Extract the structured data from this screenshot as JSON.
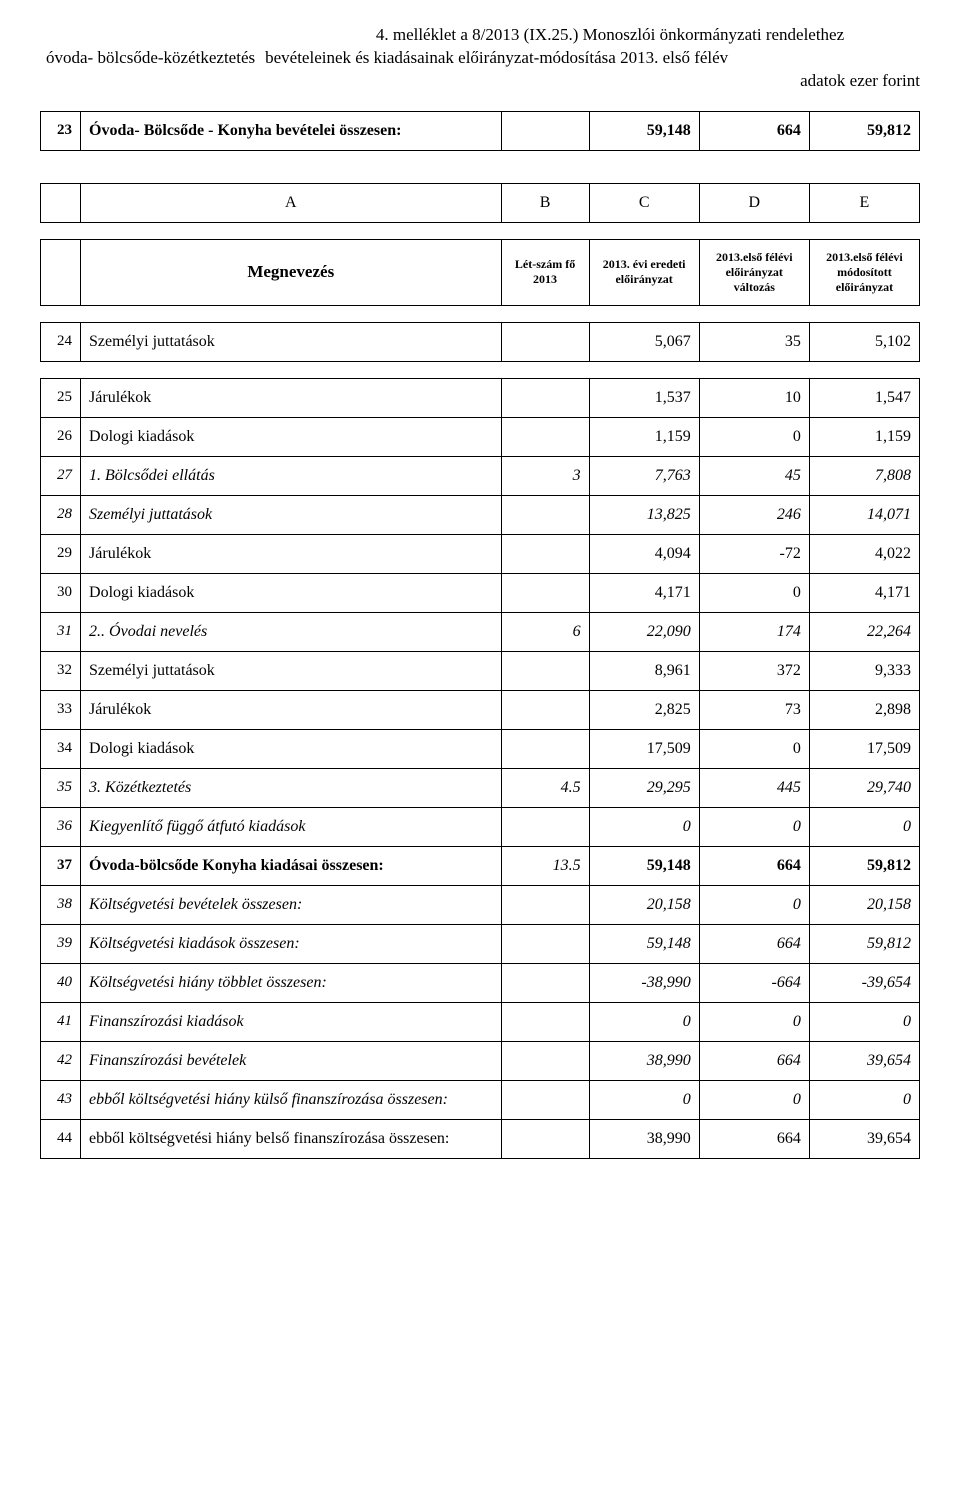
{
  "header": {
    "attachment": "4. melléklet a 8/2013 (IX.25.) Monoszlói önkormányzati rendelethez",
    "line2_left": "óvoda- bölcsőde-közétkeztetés",
    "line2_right": "bevételeinek  és kiadásainak előirányzat-módosítása 2013. első félév",
    "unitline": "adatok ezer forint"
  },
  "cols": {
    "A": "A",
    "B": "B",
    "C": "C",
    "D": "D",
    "E": "E",
    "megnevezes": "Megnevezés",
    "letszam": "Lét-szám fő 2013",
    "h1": "2013. évi eredeti előirányzat",
    "h2": "2013.első félévi előirányzat változás",
    "h3": "2013.első félévi módosított előirányzat"
  },
  "rows": [
    {
      "n": "23",
      "name": "Óvoda- Bölcsőde - Konyha bevételei összesen:",
      "ls": "",
      "v1": "59,148",
      "v2": "664",
      "v3": "59,812",
      "style": "bold"
    },
    {
      "abcde": true
    },
    {
      "meg": true
    },
    {
      "n": "24",
      "name": "Személyi juttatások",
      "ls": "",
      "v1": "5,067",
      "v2": "35",
      "v3": "5,102",
      "style": ""
    },
    {
      "n": "25",
      "name": "Járulékok",
      "ls": "",
      "v1": "1,537",
      "v2": "10",
      "v3": "1,547",
      "style": ""
    },
    {
      "n": "26",
      "name": "Dologi kiadások",
      "ls": "",
      "v1": "1,159",
      "v2": "0",
      "v3": "1,159",
      "style": ""
    },
    {
      "n": "27",
      "name": "1. Bölcsődei ellátás",
      "ls": "3",
      "v1": "7,763",
      "v2": "45",
      "v3": "7,808",
      "style": "italic"
    },
    {
      "n": "28",
      "name": "Személyi juttatások",
      "ls": "",
      "v1": "13,825",
      "v2": "246",
      "v3": "14,071",
      "style": "italic"
    },
    {
      "n": "29",
      "name": "Járulékok",
      "ls": "",
      "v1": "4,094",
      "v2": "-72",
      "v3": "4,022",
      "style": ""
    },
    {
      "n": "30",
      "name": "Dologi kiadások",
      "ls": "",
      "v1": "4,171",
      "v2": "0",
      "v3": "4,171",
      "style": ""
    },
    {
      "n": "31",
      "name": "2.. Óvodai nevelés",
      "ls": "6",
      "v1": "22,090",
      "v2": "174",
      "v3": "22,264",
      "style": "italic"
    },
    {
      "n": "32",
      "name": "Személyi juttatások",
      "ls": "",
      "v1": "8,961",
      "v2": "372",
      "v3": "9,333",
      "style": ""
    },
    {
      "n": "33",
      "name": "Járulékok",
      "ls": "",
      "v1": "2,825",
      "v2": "73",
      "v3": "2,898",
      "style": ""
    },
    {
      "n": "34",
      "name": "Dologi kiadások",
      "ls": "",
      "v1": "17,509",
      "v2": "0",
      "v3": "17,509",
      "style": ""
    },
    {
      "n": "35",
      "name": "3. Közétkeztetés",
      "ls": "4.5",
      "v1": "29,295",
      "v2": "445",
      "v3": "29,740",
      "style": "italic"
    },
    {
      "n": "36",
      "name": "Kiegyenlítő függő átfutó kiadások",
      "ls": "",
      "v1": "0",
      "v2": "0",
      "v3": "0",
      "style": "italic"
    },
    {
      "n": "37",
      "name": "Óvoda-bölcsőde Konyha kiadásai összesen:",
      "ls": "13.5",
      "v1": "59,148",
      "v2": "664",
      "v3": "59,812",
      "style": "bold",
      "lsitalic": true
    },
    {
      "n": "38",
      "name": "Költségvetési bevételek összesen:",
      "ls": "",
      "v1": "20,158",
      "v2": "0",
      "v3": "20,158",
      "style": "italic"
    },
    {
      "n": "39",
      "name": "Költségvetési kiadások összesen:",
      "ls": "",
      "v1": "59,148",
      "v2": "664",
      "v3": "59,812",
      "style": "italic"
    },
    {
      "n": "40",
      "name": "Költségvetési hiány többlet összesen:",
      "ls": "",
      "v1": "-38,990",
      "v2": "-664",
      "v3": "-39,654",
      "style": "italic"
    },
    {
      "n": "41",
      "name": "Finanszírozási kiadások",
      "ls": "",
      "v1": "0",
      "v2": "0",
      "v3": "0",
      "style": "italic"
    },
    {
      "n": "42",
      "name": "Finanszírozási bevételek",
      "ls": "",
      "v1": "38,990",
      "v2": "664",
      "v3": "39,654",
      "style": "italic"
    },
    {
      "n": "43",
      "name": "ebből költségvetési hiány külső finanszírozása összesen:",
      "ls": "",
      "v1": "0",
      "v2": "0",
      "v3": "0",
      "style": "italic"
    },
    {
      "n": "44",
      "name": "ebből költségvetési hiány belső finanszírozása összesen:",
      "ls": "",
      "v1": "38,990",
      "v2": "664",
      "v3": "39,654",
      "style": ""
    }
  ],
  "gap_after": [
    "23",
    "24",
    "megrow"
  ]
}
